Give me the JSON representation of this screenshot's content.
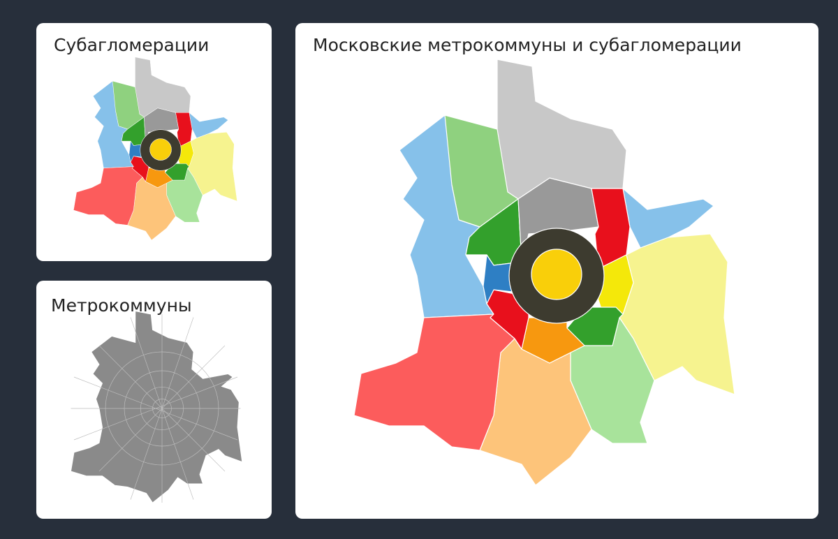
{
  "panels": [
    {
      "title": "Субагломерации"
    },
    {
      "title": "Метрокоммуны"
    },
    {
      "title": "Московские метрокоммуны и субагломерации"
    }
  ]
}
